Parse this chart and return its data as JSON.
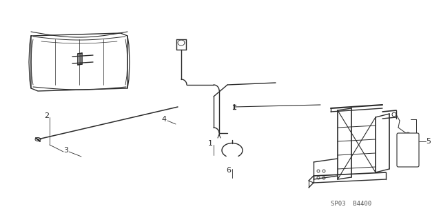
{
  "bg_color": "#ffffff",
  "line_color": "#2a2a2a",
  "label_color": "#2a2a2a",
  "watermark": "SP03  B4400",
  "figsize": [
    6.4,
    3.19
  ],
  "dpi": 100
}
